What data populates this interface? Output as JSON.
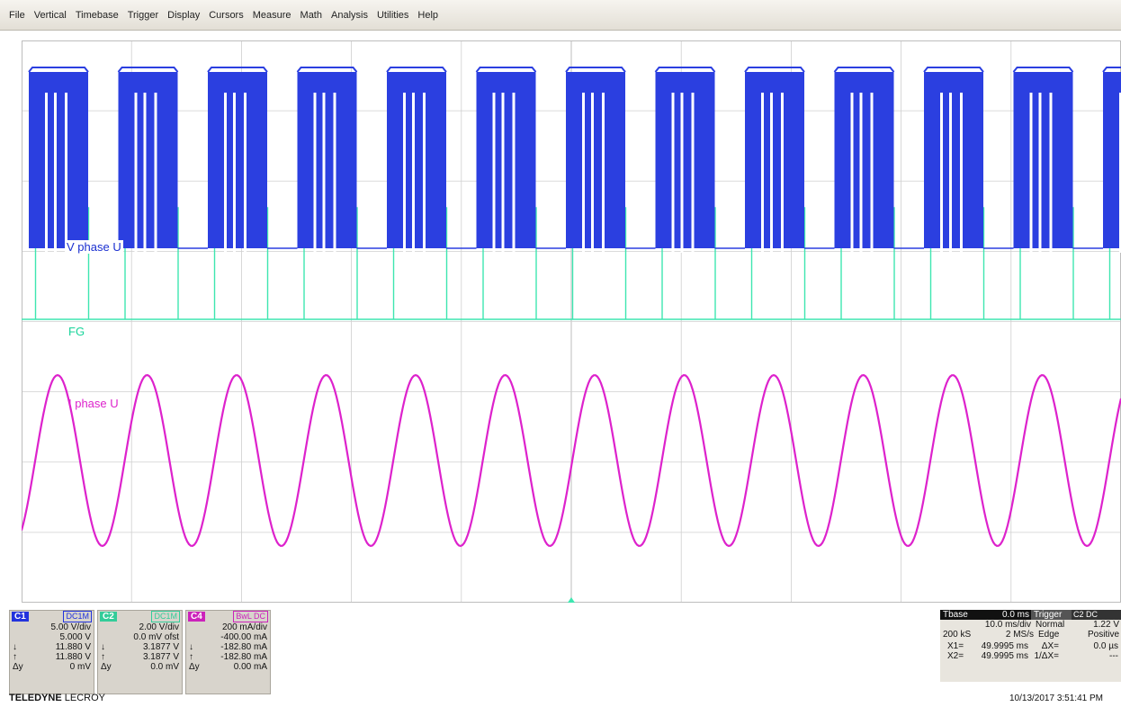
{
  "menu": [
    "File",
    "Vertical",
    "Timebase",
    "Trigger",
    "Display",
    "Cursors",
    "Measure",
    "Math",
    "Analysis",
    "Utilities",
    "Help"
  ],
  "traces": {
    "v_label": "V phase U",
    "fg_label": "FG",
    "i_label": "I phase U",
    "colors": {
      "v": "#2b3fe0",
      "fg": "#3ee6b0",
      "i": "#dd22cc",
      "grid": "#cfcfcf"
    }
  },
  "channels": [
    {
      "id": "C1",
      "coupling": "DC1M",
      "scale": "5.00 V/div",
      "offset": "5.000 V",
      "r1": "11.880 V",
      "r2": "11.880 V",
      "dy": "0 mV",
      "badge_color": "#2233dd"
    },
    {
      "id": "C2",
      "coupling": "DC1M",
      "scale": "2.00 V/div",
      "offset": "0.0 mV ofst",
      "r1": "3.1877 V",
      "r2": "3.1877 V",
      "dy": "0.0 mV",
      "badge_color": "#33cc99"
    },
    {
      "id": "C4",
      "coupling": "BwL DC",
      "scale": "200 mA/div",
      "offset": "-400.00 mA",
      "r1": "-182.80 mA",
      "r2": "-182.80 mA",
      "dy": "0.00 mA",
      "badge_color": "#cc22bb"
    }
  ],
  "brand": {
    "part1": "TELEDYNE",
    "part2": " LECROY"
  },
  "timebase": {
    "tbase_label": "Tbase",
    "tbase_val": "0.0 ms",
    "time_div": "10.0 ms/div",
    "samples": "200 kS",
    "rate": "2 MS/s",
    "trigger_label": "Trigger",
    "trigger_src": "C2 DC",
    "trigger_mode": "Normal",
    "trigger_level": "1.22 V",
    "trigger_type": "Edge",
    "trigger_slope": "Positive"
  },
  "cursors": {
    "x1": "X1=",
    "x1_val": "49.9995 ms",
    "dx": "ΔX=",
    "dx_val": "0.0 µs",
    "x2": "X2=",
    "x2_val": "49.9995 ms",
    "inv_dx": "1/ΔX=",
    "inv_dx_val": "---"
  },
  "timestamp": "10/13/2017 3:51:41 PM"
}
